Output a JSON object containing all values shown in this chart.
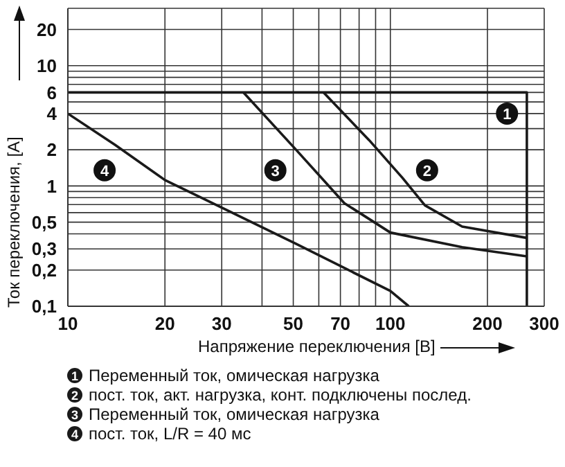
{
  "chart_data": {
    "type": "line",
    "xlabel": "Напряжение переключения [В]",
    "ylabel": "Ток переключения, [А]",
    "log": "xy",
    "grid": true,
    "legend": "bottom",
    "marker": "none",
    "line_style": "solid",
    "xlim": [
      10,
      300
    ],
    "ylim": [
      0.1,
      30
    ],
    "xticks": [
      10,
      20,
      30,
      {
        "value": 40,
        "label": null
      },
      50,
      {
        "value": 60,
        "label": null
      },
      70,
      {
        "value": 80,
        "label": null
      },
      {
        "value": 90,
        "label": null
      },
      100,
      200,
      300
    ],
    "yticks": [
      {
        "value": 0.1,
        "label": "0,1"
      },
      {
        "value": 0.2,
        "label": "0,2"
      },
      {
        "value": 0.3,
        "label": "0,3"
      },
      {
        "value": 0.4,
        "label": null
      },
      {
        "value": 0.5,
        "label": "0,5"
      },
      {
        "value": 0.6,
        "label": null
      },
      {
        "value": 0.7,
        "label": null
      },
      {
        "value": 0.8,
        "label": null
      },
      {
        "value": 0.9,
        "label": null
      },
      1,
      2,
      {
        "value": 3,
        "label": null
      },
      4,
      {
        "value": 5,
        "label": null
      },
      6,
      {
        "value": 7,
        "label": null
      },
      {
        "value": 8,
        "label": null
      },
      {
        "value": 9,
        "label": null
      },
      10,
      20,
      {
        "value": 30,
        "label": null
      }
    ],
    "series": [
      {
        "name": "Переменный ток, омическая нагрузка",
        "color": "#1a1a1a",
        "x": [
          10,
          265,
          265
        ],
        "values": [
          6,
          6,
          0.1
        ]
      },
      {
        "name": "пост. ток, акт. нагрузка, конт. подключены послед.",
        "color": "#1a1a1a",
        "x": [
          62,
          86,
          109,
          128,
          167,
          265
        ],
        "values": [
          6,
          2.4,
          1.17,
          0.69,
          0.46,
          0.37
        ]
      },
      {
        "name": "Переменный ток, омическая нагрузка",
        "color": "#1a1a1a",
        "x": [
          35,
          51,
          72,
          100,
          167,
          265
        ],
        "values": [
          6,
          2,
          0.72,
          0.41,
          0.31,
          0.26
        ]
      },
      {
        "name": "пост. ток, L/R = 40 мс",
        "color": "#1a1a1a",
        "x": [
          10,
          14,
          20,
          30,
          51,
          100,
          114
        ],
        "values": [
          4,
          2.2,
          1.12,
          0.66,
          0.33,
          0.134,
          0.1
        ]
      }
    ],
    "annotations": [
      {
        "text": "1",
        "x": 230,
        "y": 4
      },
      {
        "text": "2",
        "x": 130,
        "y": 1.35
      },
      {
        "text": "3",
        "x": 44,
        "y": 1.35
      },
      {
        "text": "4",
        "x": 13,
        "y": 1.35
      }
    ]
  }
}
